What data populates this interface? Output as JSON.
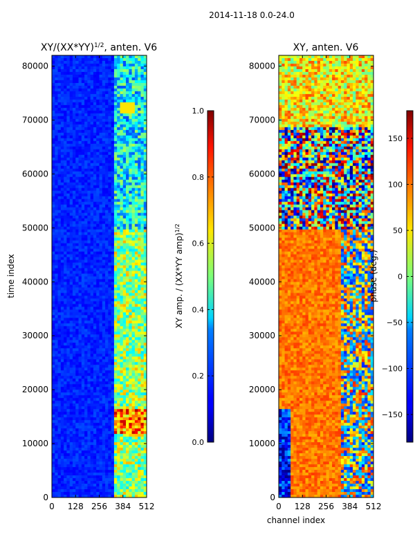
{
  "suptitle": "2014-11-18 0.0-24.0",
  "chart_data": [
    {
      "type": "heatmap",
      "title": "XY/(XX*YY)^{1/2}, anten. V6",
      "title_base": "XY/(XX*YY)",
      "title_exp": "1/2",
      "title_tail": ", anten. V6",
      "xlabel": "",
      "ylabel": "time index",
      "xlim": [
        0,
        512
      ],
      "ylim": [
        0,
        82000
      ],
      "xticks": [
        0,
        128,
        256,
        384,
        512
      ],
      "yticks": [
        0,
        10000,
        20000,
        30000,
        40000,
        50000,
        60000,
        70000,
        80000
      ],
      "colorbar": {
        "label_base": "XY amp. / (XX*YY amp)",
        "label_exp": "1/2",
        "range": [
          0.0,
          1.0
        ],
        "ticks": [
          "0.0",
          "0.2",
          "0.4",
          "0.6",
          "0.8",
          "1.0"
        ],
        "colormap": "jet"
      }
    },
    {
      "type": "heatmap",
      "title": "XY, anten. V6",
      "xlabel": "channel index",
      "ylabel": "",
      "xlim": [
        0,
        512
      ],
      "ylim": [
        0,
        82000
      ],
      "xticks": [
        0,
        128,
        256,
        384,
        512
      ],
      "yticks": [
        0,
        10000,
        20000,
        30000,
        40000,
        50000,
        60000,
        70000,
        80000
      ],
      "colorbar": {
        "label": "phase (deg.)",
        "range": [
          -180,
          180
        ],
        "ticks": [
          "−150",
          "−100",
          "−50",
          "0",
          "50",
          "100",
          "150"
        ],
        "tick_values": [
          -150,
          -100,
          -50,
          0,
          50,
          100,
          150
        ],
        "colormap": "jet"
      }
    }
  ]
}
